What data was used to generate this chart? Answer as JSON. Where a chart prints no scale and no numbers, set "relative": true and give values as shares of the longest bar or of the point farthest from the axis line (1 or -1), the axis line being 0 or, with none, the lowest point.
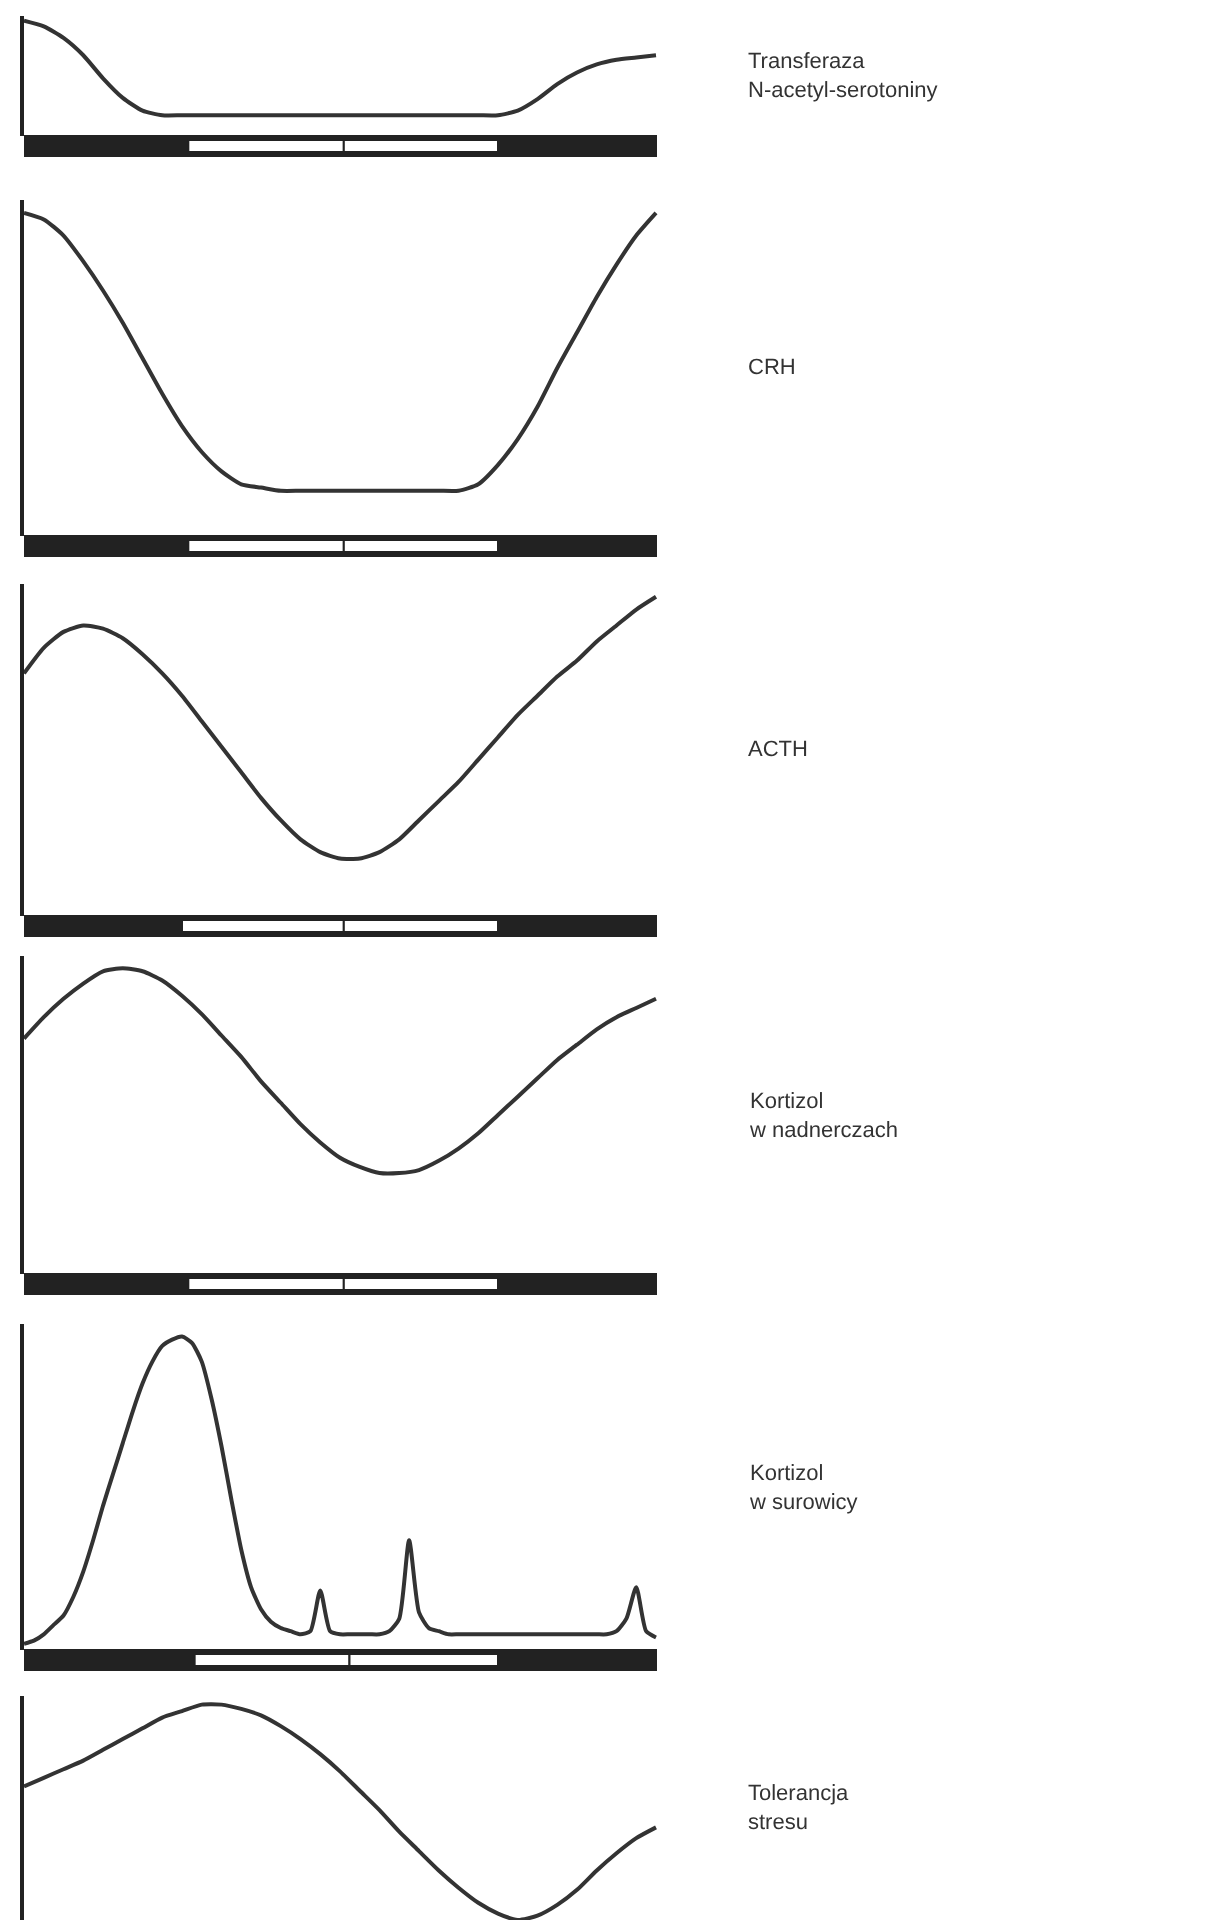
{
  "chart_data": [
    {
      "type": "line",
      "relative": true,
      "categories": [
        null,
        null,
        null,
        null,
        null,
        null,
        null,
        null,
        null,
        null,
        null,
        null,
        null,
        null,
        null,
        null,
        null,
        null,
        null,
        null,
        null,
        null,
        null,
        null,
        null,
        null,
        null,
        null,
        null,
        null,
        null,
        null,
        null
      ],
      "series": [
        {
          "name": "Transferaza\nN-acetyl-serotoniny",
          "color": "#333333",
          "values": [
            1.0,
            0.95,
            0.85,
            0.7,
            0.5,
            0.33,
            0.22,
            0.18,
            0.18,
            0.18,
            0.18,
            0.18,
            0.18,
            0.18,
            0.18,
            0.18,
            0.18,
            0.18,
            0.18,
            0.18,
            0.18,
            0.18,
            0.18,
            0.18,
            0.18,
            0.22,
            0.32,
            0.45,
            0.55,
            0.62,
            0.66,
            0.68,
            0.7
          ]
        }
      ]
    },
    {
      "type": "line",
      "relative": true,
      "categories": [
        null,
        null,
        null,
        null,
        null,
        null,
        null,
        null,
        null,
        null,
        null,
        null,
        null,
        null,
        null,
        null,
        null,
        null,
        null,
        null,
        null,
        null,
        null,
        null,
        null,
        null,
        null,
        null,
        null,
        null,
        null,
        null,
        null
      ],
      "series": [
        {
          "name": "CRH",
          "color": "#333333",
          "values": [
            1.0,
            0.98,
            0.93,
            0.85,
            0.76,
            0.66,
            0.55,
            0.44,
            0.34,
            0.26,
            0.2,
            0.16,
            0.15,
            0.14,
            0.14,
            0.14,
            0.14,
            0.14,
            0.14,
            0.14,
            0.14,
            0.14,
            0.14,
            0.16,
            0.22,
            0.3,
            0.4,
            0.52,
            0.63,
            0.74,
            0.84,
            0.93,
            1.0
          ]
        }
      ]
    },
    {
      "type": "line",
      "relative": true,
      "categories": [
        null,
        null,
        null,
        null,
        null,
        null,
        null,
        null,
        null,
        null,
        null,
        null,
        null,
        null,
        null,
        null,
        null,
        null,
        null,
        null,
        null,
        null,
        null,
        null,
        null,
        null,
        null,
        null,
        null,
        null,
        null,
        null,
        null
      ],
      "series": [
        {
          "name": "ACTH",
          "color": "#333333",
          "values": [
            0.76,
            0.84,
            0.89,
            0.91,
            0.9,
            0.87,
            0.82,
            0.76,
            0.69,
            0.61,
            0.53,
            0.45,
            0.37,
            0.3,
            0.24,
            0.2,
            0.18,
            0.18,
            0.2,
            0.24,
            0.3,
            0.36,
            0.42,
            0.49,
            0.56,
            0.63,
            0.69,
            0.75,
            0.8,
            0.86,
            0.91,
            0.96,
            1.0
          ]
        }
      ]
    },
    {
      "type": "line",
      "relative": true,
      "categories": [
        null,
        null,
        null,
        null,
        null,
        null,
        null,
        null,
        null,
        null,
        null,
        null,
        null,
        null,
        null,
        null,
        null,
        null,
        null,
        null,
        null,
        null,
        null,
        null,
        null,
        null,
        null,
        null,
        null,
        null,
        null,
        null,
        null
      ],
      "series": [
        {
          "name": "Kortizol\nw nadnerczach",
          "color": "#333333",
          "values": [
            0.77,
            0.84,
            0.9,
            0.95,
            0.99,
            1.0,
            0.99,
            0.96,
            0.91,
            0.85,
            0.78,
            0.71,
            0.63,
            0.56,
            0.49,
            0.43,
            0.38,
            0.35,
            0.33,
            0.33,
            0.34,
            0.37,
            0.41,
            0.46,
            0.52,
            0.58,
            0.64,
            0.7,
            0.75,
            0.8,
            0.84,
            0.87,
            0.9
          ]
        }
      ]
    },
    {
      "type": "line",
      "relative": true,
      "categories": [
        null,
        null,
        null,
        null,
        null,
        null,
        null,
        null,
        null,
        null,
        null,
        null,
        null,
        null,
        null,
        null,
        null,
        null,
        null,
        null,
        null,
        null,
        null,
        null,
        null,
        null,
        null,
        null,
        null,
        null,
        null,
        null,
        null,
        null,
        null,
        null,
        null,
        null,
        null,
        null,
        null,
        null,
        null,
        null,
        null,
        null,
        null,
        null,
        null,
        null,
        null,
        null,
        null,
        null,
        null,
        null,
        null,
        null,
        null,
        null,
        null,
        null,
        null,
        null,
        null
      ],
      "series": [
        {
          "name": "Kortizol\nw surowicy",
          "color": "#333333",
          "values": [
            0.02,
            0.03,
            0.05,
            0.08,
            0.11,
            0.17,
            0.25,
            0.35,
            0.46,
            0.56,
            0.66,
            0.76,
            0.85,
            0.92,
            0.97,
            0.99,
            1.0,
            0.98,
            0.92,
            0.8,
            0.65,
            0.48,
            0.32,
            0.2,
            0.13,
            0.09,
            0.07,
            0.06,
            0.05,
            0.06,
            0.19,
            0.06,
            0.05,
            0.05,
            0.05,
            0.05,
            0.05,
            0.06,
            0.1,
            0.35,
            0.12,
            0.07,
            0.06,
            0.05,
            0.05,
            0.05,
            0.05,
            0.05,
            0.05,
            0.05,
            0.05,
            0.05,
            0.05,
            0.05,
            0.05,
            0.05,
            0.05,
            0.05,
            0.05,
            0.05,
            0.06,
            0.1,
            0.2,
            0.06,
            0.04
          ]
        }
      ]
    },
    {
      "type": "line",
      "relative": true,
      "categories": [
        null,
        null,
        null,
        null,
        null,
        null,
        null,
        null,
        null,
        null,
        null,
        null,
        null,
        null,
        null,
        null,
        null,
        null,
        null,
        null,
        null,
        null,
        null,
        null,
        null,
        null,
        null,
        null,
        null,
        null,
        null,
        null,
        null
      ],
      "series": [
        {
          "name": "Tolerancja\nstresu",
          "color": "#333333",
          "values": [
            0.62,
            0.66,
            0.7,
            0.74,
            0.79,
            0.84,
            0.89,
            0.94,
            0.97,
            1.0,
            1.0,
            0.98,
            0.95,
            0.9,
            0.84,
            0.77,
            0.69,
            0.6,
            0.51,
            0.41,
            0.32,
            0.23,
            0.15,
            0.08,
            0.03,
            0.0,
            0.02,
            0.07,
            0.14,
            0.23,
            0.31,
            0.38,
            0.43
          ]
        }
      ]
    }
  ]
}
